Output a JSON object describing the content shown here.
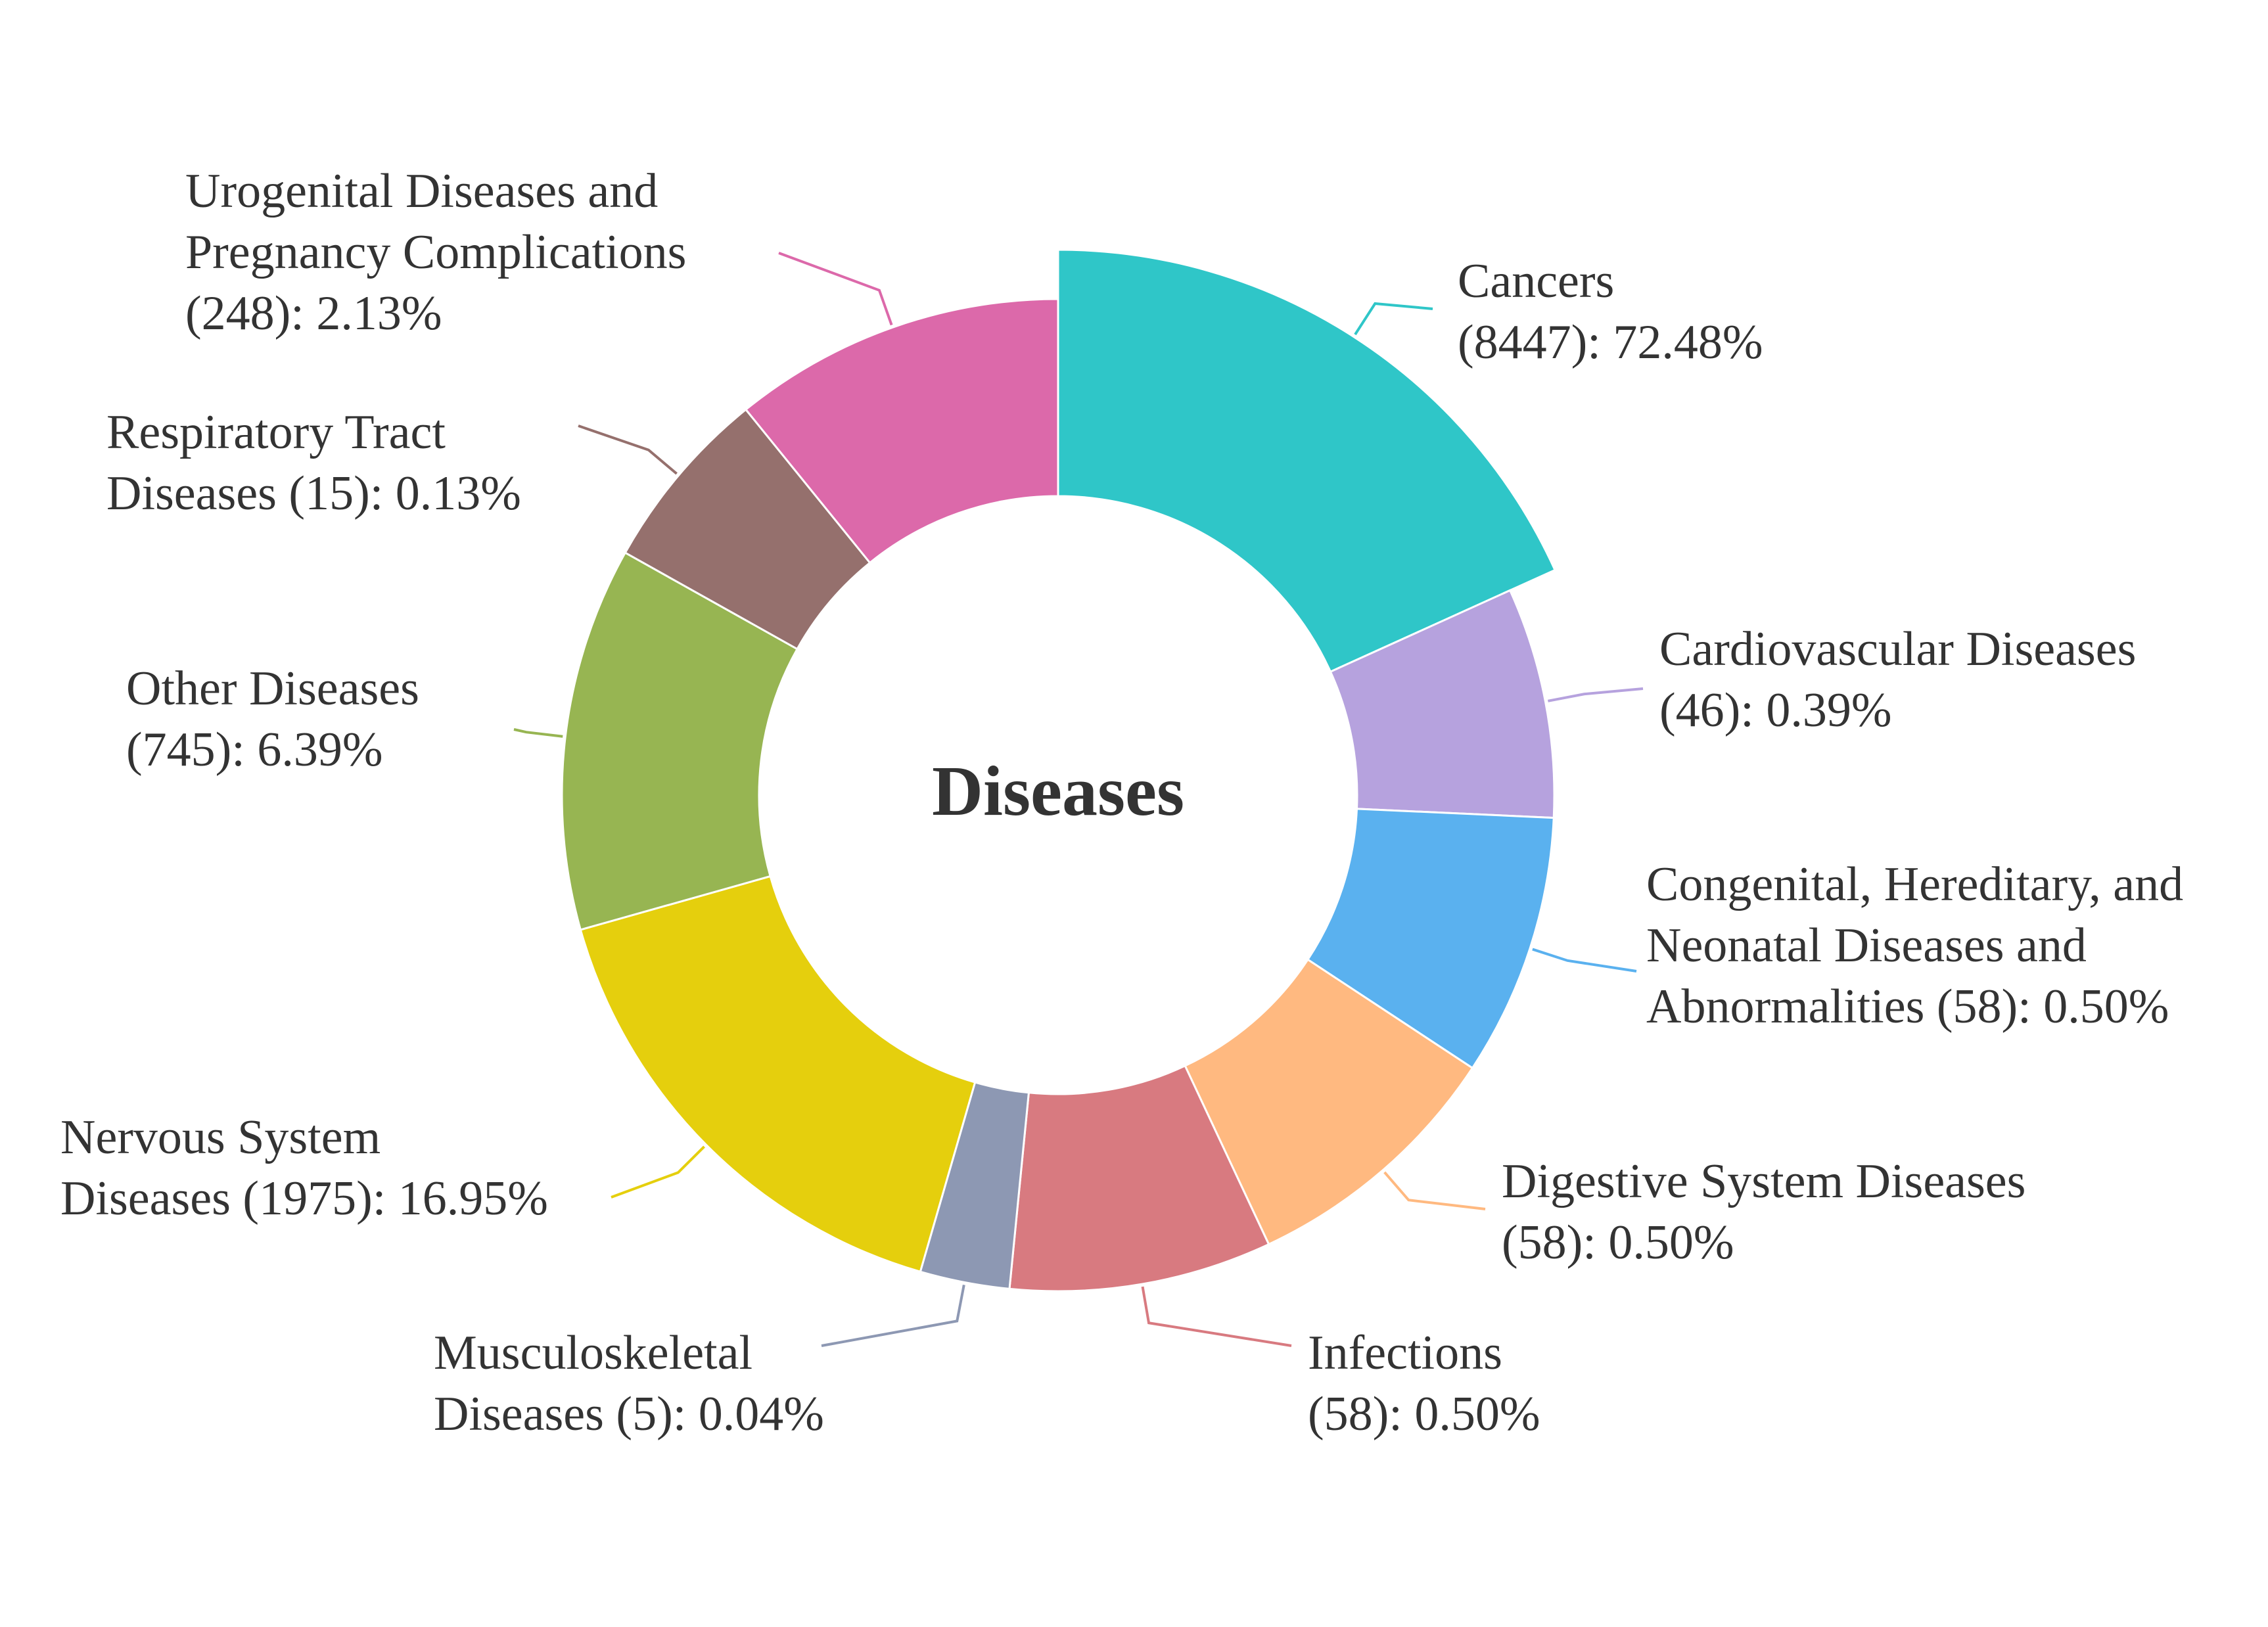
{
  "chart_data": {
    "type": "pie",
    "variant": "donut",
    "title": "Diseases",
    "unit": "count",
    "slices": [
      {
        "name": "Cancers",
        "count": 8447,
        "percent": "72.48%",
        "color": "#2fc6c8",
        "label_lines": [
          "Cancers",
          "(8447): 72.48%"
        ]
      },
      {
        "name": "Cardiovascular Diseases",
        "count": 46,
        "percent": "0.39%",
        "color": "#b6a2de",
        "label_lines": [
          "Cardiovascular Diseases",
          "(46): 0.39%"
        ]
      },
      {
        "name": "Congenital, Hereditary, and Neonatal Diseases and Abnormalities",
        "count": 58,
        "percent": "0.50%",
        "color": "#5ab1ef",
        "label_lines": [
          "Congenital, Hereditary, and",
          "Neonatal Diseases and",
          "Abnormalities (58): 0.50%"
        ]
      },
      {
        "name": "Digestive System Diseases",
        "count": 58,
        "percent": "0.50%",
        "color": "#ffb980",
        "label_lines": [
          "Digestive System Diseases",
          "(58): 0.50%"
        ]
      },
      {
        "name": "Infections",
        "count": 58,
        "percent": "0.50%",
        "color": "#d87a80",
        "label_lines": [
          "Infections",
          "(58): 0.50%"
        ]
      },
      {
        "name": "Musculoskeletal Diseases",
        "count": 5,
        "percent": "0.04%",
        "color": "#8d98b3",
        "label_lines": [
          "Musculoskeletal",
          "Diseases (5): 0.04%"
        ]
      },
      {
        "name": "Nervous System Diseases",
        "count": 1975,
        "percent": "16.95%",
        "color": "#e5cf0d",
        "label_lines": [
          "Nervous System",
          "Diseases (1975): 16.95%"
        ]
      },
      {
        "name": "Other Diseases",
        "count": 745,
        "percent": "6.39%",
        "color": "#97b552",
        "label_lines": [
          "Other Diseases",
          "(745): 6.39%"
        ]
      },
      {
        "name": "Respiratory Tract Diseases",
        "count": 15,
        "percent": "0.13%",
        "color": "#95706d",
        "label_lines": [
          "Respiratory Tract",
          "Diseases (15): 0.13%"
        ]
      },
      {
        "name": "Urogenital Diseases and Pregnancy Complications",
        "count": 248,
        "percent": "2.13%",
        "color": "#dc69aa",
        "label_lines": [
          "Urogenital Diseases and",
          "Pregnancy Complications",
          "(248): 2.13%"
        ]
      }
    ]
  }
}
